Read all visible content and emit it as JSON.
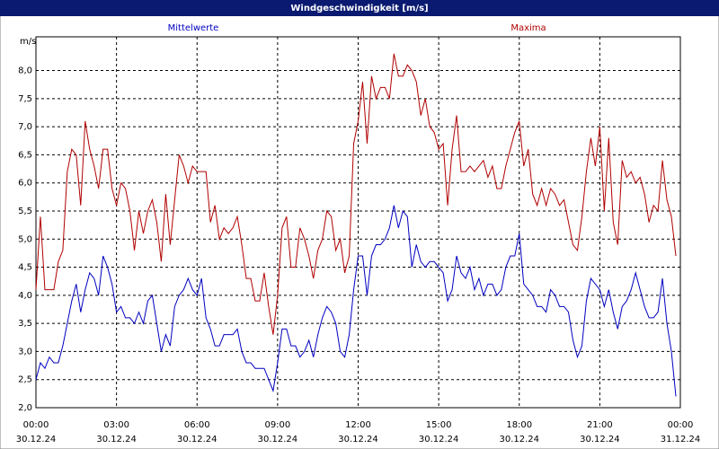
{
  "chart_data": {
    "type": "line",
    "title": "Windgeschwindigkeit [m/s]",
    "y_label": "m/s",
    "x": [
      0,
      10,
      20,
      30,
      40,
      50,
      60,
      70,
      80,
      90,
      100,
      110,
      120,
      130,
      140,
      150,
      160,
      170,
      180,
      190,
      200,
      210,
      220,
      230,
      240,
      250,
      260,
      270,
      280,
      290,
      300,
      310,
      320,
      330,
      340,
      350,
      360,
      370,
      380,
      390,
      400,
      410,
      420,
      430,
      440,
      450,
      460,
      470,
      480,
      490,
      500,
      510,
      520,
      530,
      540,
      550,
      560,
      570,
      580,
      590,
      600,
      610,
      620,
      630,
      640,
      650,
      660,
      670,
      680,
      690,
      700,
      710,
      720,
      730,
      740,
      750,
      760,
      770,
      780,
      790,
      800,
      810,
      820,
      830,
      840,
      850,
      860,
      870,
      880,
      890,
      900,
      910,
      920,
      930,
      940,
      950,
      960,
      970,
      980,
      990,
      1000,
      1010,
      1020,
      1030,
      1040,
      1050,
      1060,
      1070,
      1080,
      1090,
      1100,
      1110,
      1120,
      1130,
      1140,
      1150,
      1160,
      1170,
      1180,
      1190,
      1200,
      1210,
      1220,
      1230,
      1240,
      1250,
      1260,
      1270,
      1280,
      1290,
      1300,
      1310,
      1320,
      1330,
      1340,
      1350,
      1360,
      1370,
      1380,
      1390,
      1400,
      1410,
      1420,
      1430
    ],
    "series": [
      {
        "name": "Mittelwerte",
        "color": "#0000c0",
        "values": [
          2.5,
          2.8,
          2.7,
          2.9,
          2.8,
          2.8,
          3.1,
          3.5,
          3.9,
          4.2,
          3.7,
          4.1,
          4.4,
          4.3,
          4.0,
          4.7,
          4.5,
          4.2,
          3.7,
          3.8,
          3.6,
          3.6,
          3.5,
          3.7,
          3.5,
          3.9,
          4.0,
          3.5,
          3.0,
          3.3,
          3.1,
          3.8,
          4.0,
          4.1,
          4.3,
          4.1,
          4.0,
          4.3,
          3.6,
          3.4,
          3.1,
          3.1,
          3.3,
          3.3,
          3.3,
          3.4,
          3.0,
          2.8,
          2.8,
          2.7,
          2.7,
          2.7,
          2.5,
          2.3,
          2.8,
          3.4,
          3.4,
          3.1,
          3.1,
          2.9,
          3.0,
          3.2,
          2.9,
          3.3,
          3.6,
          3.8,
          3.7,
          3.5,
          3.0,
          2.9,
          3.3,
          4.1,
          4.7,
          4.7,
          4.0,
          4.7,
          4.9,
          4.9,
          5.0,
          5.2,
          5.6,
          5.2,
          5.5,
          5.4,
          4.5,
          4.9,
          4.6,
          4.5,
          4.6,
          4.6,
          4.5,
          4.4,
          3.9,
          4.1,
          4.7,
          4.4,
          4.3,
          4.5,
          4.1,
          4.3,
          4.0,
          4.2,
          4.2,
          4.0,
          4.1,
          4.5,
          4.7,
          4.7,
          5.1,
          4.2,
          4.1,
          4.0,
          3.8,
          3.8,
          3.7,
          4.1,
          4.0,
          3.8,
          3.8,
          3.7,
          3.2,
          2.9,
          3.1,
          3.9,
          4.3,
          4.2,
          4.1,
          3.8,
          4.1,
          3.7,
          3.4,
          3.8,
          3.9,
          4.1,
          4.4,
          4.1,
          3.8,
          3.6,
          3.6,
          3.7,
          4.3,
          3.5,
          3.0,
          2.2
        ]
      },
      {
        "name": "Maxima",
        "color": "#b00000",
        "values": [
          4.1,
          5.4,
          4.1,
          4.1,
          4.1,
          4.6,
          4.8,
          6.2,
          6.6,
          6.5,
          5.6,
          7.1,
          6.6,
          6.3,
          5.9,
          6.6,
          6.6,
          5.9,
          5.6,
          6.0,
          5.9,
          5.5,
          4.8,
          5.5,
          5.1,
          5.5,
          5.7,
          5.3,
          4.6,
          5.8,
          4.9,
          5.7,
          6.5,
          6.3,
          6.0,
          6.3,
          6.2,
          6.2,
          6.2,
          5.3,
          5.6,
          5.0,
          5.2,
          5.1,
          5.2,
          5.4,
          4.9,
          4.3,
          4.3,
          3.9,
          3.9,
          4.4,
          3.8,
          3.3,
          4.0,
          5.2,
          5.4,
          4.5,
          4.5,
          5.2,
          5.0,
          4.7,
          4.3,
          4.8,
          5.0,
          5.5,
          5.4,
          4.8,
          5.0,
          4.4,
          4.7,
          6.7,
          7.1,
          7.8,
          6.7,
          7.9,
          7.5,
          7.7,
          7.7,
          7.5,
          8.3,
          7.9,
          7.9,
          8.1,
          8.0,
          7.8,
          7.2,
          7.5,
          7.0,
          6.9,
          6.6,
          6.7,
          5.6,
          6.6,
          7.2,
          6.2,
          6.2,
          6.3,
          6.2,
          6.3,
          6.4,
          6.1,
          6.3,
          5.9,
          5.9,
          6.3,
          6.6,
          6.9,
          7.1,
          6.3,
          6.6,
          5.8,
          5.6,
          5.9,
          5.6,
          5.9,
          5.8,
          5.6,
          5.7,
          5.3,
          4.9,
          4.8,
          5.4,
          6.2,
          6.8,
          6.3,
          7.0,
          5.5,
          6.8,
          5.3,
          4.9,
          6.4,
          6.1,
          6.2,
          6.0,
          6.1,
          5.8,
          5.3,
          5.6,
          5.5,
          6.4,
          5.7,
          5.4,
          4.7
        ]
      }
    ],
    "xlim": [
      0,
      1440
    ],
    "xticks": [
      {
        "value": 0,
        "label": "00:00"
      },
      {
        "value": 180,
        "label": "03:00"
      },
      {
        "value": 360,
        "label": "06:00"
      },
      {
        "value": 540,
        "label": "09:00"
      },
      {
        "value": 720,
        "label": "12:00"
      },
      {
        "value": 900,
        "label": "15:00"
      },
      {
        "value": 1080,
        "label": "18:00"
      },
      {
        "value": 1260,
        "label": "21:00"
      },
      {
        "value": 1440,
        "label": "00:00"
      }
    ],
    "xtick_dates": [
      "30.12.24",
      "30.12.24",
      "30.12.24",
      "30.12.24",
      "30.12.24",
      "30.12.24",
      "30.12.24",
      "30.12.24",
      "31.12.24"
    ],
    "ylim": [
      2.0,
      8.6
    ],
    "yticks": [
      {
        "value": 2.0,
        "label": "2,0"
      },
      {
        "value": 2.5,
        "label": "2,5"
      },
      {
        "value": 3.0,
        "label": "3,0"
      },
      {
        "value": 3.5,
        "label": "3,5"
      },
      {
        "value": 4.0,
        "label": "4,0"
      },
      {
        "value": 4.5,
        "label": "4,5"
      },
      {
        "value": 5.0,
        "label": "5,0"
      },
      {
        "value": 5.5,
        "label": "5,5"
      },
      {
        "value": 6.0,
        "label": "6,0"
      },
      {
        "value": 6.5,
        "label": "6,5"
      },
      {
        "value": 7.0,
        "label": "7,0"
      },
      {
        "value": 7.5,
        "label": "7,5"
      },
      {
        "value": 8.0,
        "label": "8,0"
      }
    ],
    "grid": true
  }
}
